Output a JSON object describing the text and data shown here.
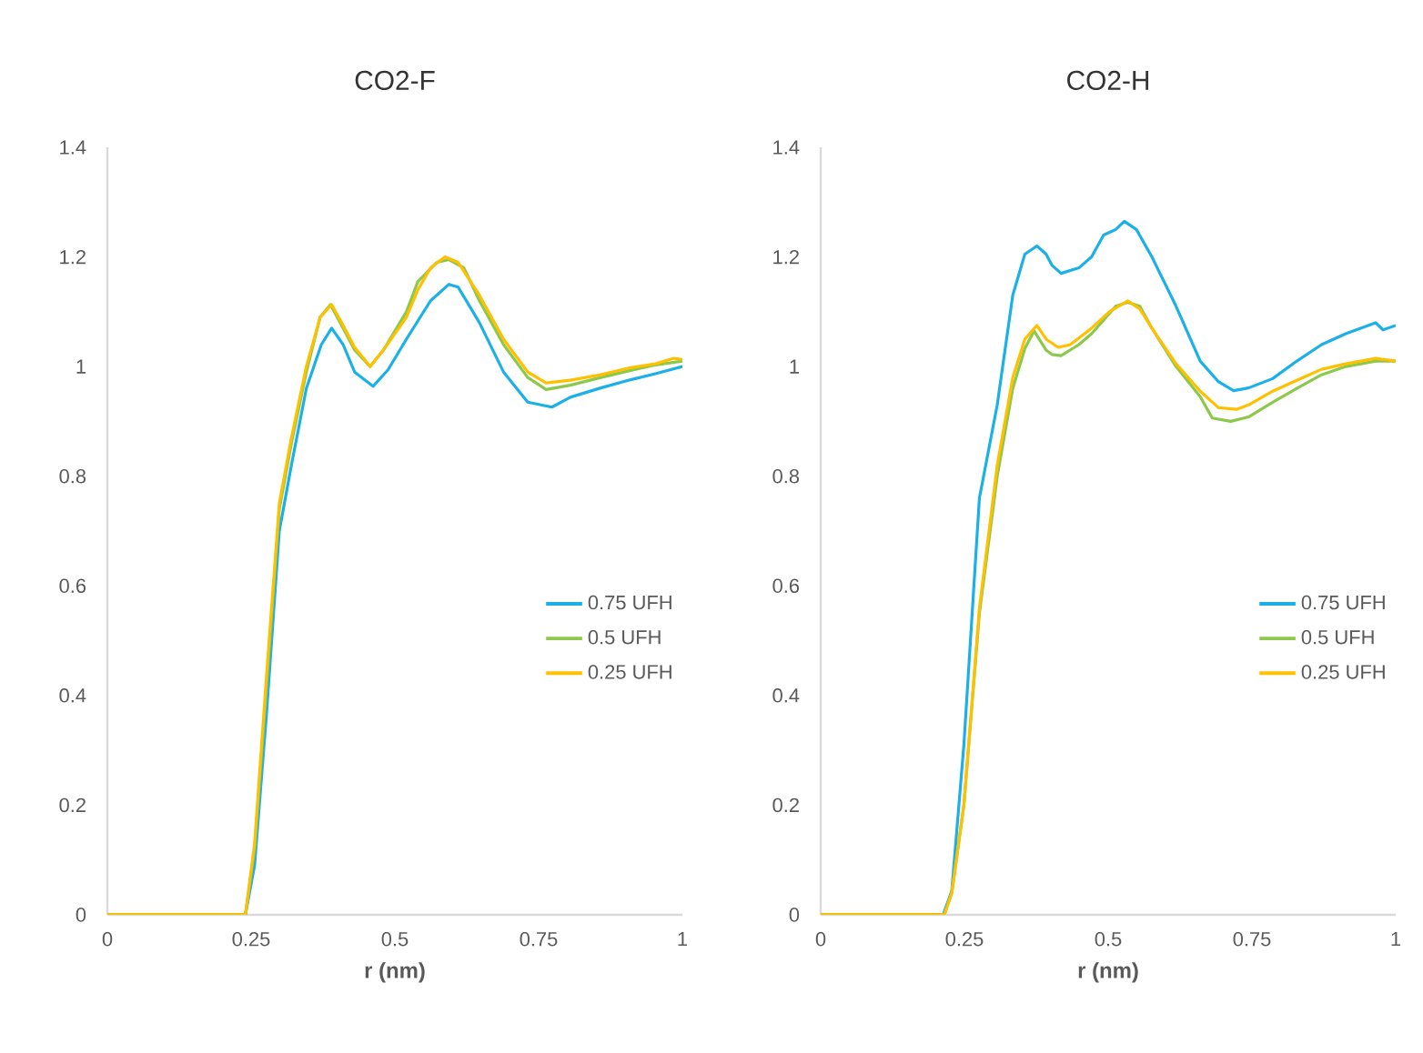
{
  "chart_data": [
    {
      "type": "line",
      "title": "CO2-F",
      "xlabel": "r (nm)",
      "xlim": [
        0,
        1
      ],
      "ylim": [
        0,
        1.4
      ],
      "xticks": [
        0,
        0.25,
        0.5,
        0.75,
        1
      ],
      "yticks": [
        0,
        0.2,
        0.4,
        0.6,
        0.8,
        1,
        1.2,
        1.4
      ],
      "legend": "right",
      "marker": "none",
      "series": [
        {
          "name": "0.75 UFH",
          "color": "#1cb0e8",
          "x": [
            0,
            0.24,
            0.256,
            0.277,
            0.299,
            0.32,
            0.346,
            0.372,
            0.39,
            0.41,
            0.43,
            0.462,
            0.488,
            0.52,
            0.562,
            0.594,
            0.61,
            0.647,
            0.689,
            0.731,
            0.773,
            0.805,
            0.858,
            0.91,
            0.953,
            1.0
          ],
          "values": [
            0,
            0,
            0.09,
            0.37,
            0.7,
            0.82,
            0.96,
            1.04,
            1.07,
            1.04,
            0.99,
            0.964,
            0.994,
            1.05,
            1.12,
            1.15,
            1.145,
            1.08,
            0.99,
            0.935,
            0.926,
            0.944,
            0.961,
            0.976,
            0.987,
            1.0
          ]
        },
        {
          "name": "0.5 UFH",
          "color": "#8cc84b",
          "x": [
            0,
            0.24,
            0.256,
            0.277,
            0.299,
            0.32,
            0.346,
            0.37,
            0.388,
            0.41,
            0.43,
            0.457,
            0.48,
            0.52,
            0.54,
            0.573,
            0.594,
            0.62,
            0.647,
            0.689,
            0.731,
            0.763,
            0.805,
            0.858,
            0.91,
            0.953,
            1.0
          ],
          "values": [
            0,
            0,
            0.12,
            0.42,
            0.74,
            0.86,
            0.99,
            1.09,
            1.113,
            1.07,
            1.03,
            1.0,
            1.03,
            1.1,
            1.155,
            1.19,
            1.195,
            1.18,
            1.12,
            1.04,
            0.98,
            0.958,
            0.966,
            0.98,
            0.993,
            1.003,
            1.01
          ]
        },
        {
          "name": "0.25 UFH",
          "color": "#ffc000",
          "x": [
            0,
            0.24,
            0.256,
            0.277,
            0.299,
            0.32,
            0.346,
            0.37,
            0.39,
            0.41,
            0.43,
            0.457,
            0.48,
            0.52,
            0.54,
            0.562,
            0.587,
            0.61,
            0.647,
            0.689,
            0.731,
            0.763,
            0.805,
            0.858,
            0.91,
            0.953,
            0.985,
            1.0
          ],
          "values": [
            0,
            0,
            0.13,
            0.44,
            0.75,
            0.87,
            1.0,
            1.09,
            1.113,
            1.075,
            1.035,
            1.0,
            1.03,
            1.09,
            1.14,
            1.18,
            1.2,
            1.19,
            1.13,
            1.05,
            0.99,
            0.97,
            0.975,
            0.985,
            0.998,
            1.005,
            1.015,
            1.013
          ]
        }
      ]
    },
    {
      "type": "line",
      "title": "CO2-H",
      "xlabel": "r (nm)",
      "xlim": [
        0,
        1
      ],
      "ylim": [
        0,
        1.4
      ],
      "xticks": [
        0,
        0.25,
        0.5,
        0.75,
        1
      ],
      "yticks": [
        0,
        0.2,
        0.4,
        0.6,
        0.8,
        1,
        1.2,
        1.4
      ],
      "legend": "right",
      "marker": "none",
      "series": [
        {
          "name": "0.75 UFH",
          "color": "#1cb0e8",
          "x": [
            0,
            0.213,
            0.228,
            0.249,
            0.276,
            0.307,
            0.334,
            0.355,
            0.376,
            0.392,
            0.402,
            0.418,
            0.449,
            0.471,
            0.492,
            0.513,
            0.528,
            0.549,
            0.576,
            0.618,
            0.66,
            0.692,
            0.718,
            0.744,
            0.786,
            0.828,
            0.871,
            0.913,
            0.965,
            0.978,
            1.0
          ],
          "values": [
            0,
            0,
            0.044,
            0.31,
            0.76,
            0.93,
            1.13,
            1.205,
            1.22,
            1.205,
            1.185,
            1.17,
            1.18,
            1.2,
            1.24,
            1.25,
            1.265,
            1.25,
            1.2,
            1.11,
            1.01,
            0.972,
            0.956,
            0.961,
            0.978,
            1.01,
            1.04,
            1.06,
            1.08,
            1.067,
            1.075
          ]
        },
        {
          "name": "0.5 UFH",
          "color": "#8cc84b",
          "x": [
            0,
            0.215,
            0.228,
            0.249,
            0.276,
            0.307,
            0.334,
            0.355,
            0.371,
            0.392,
            0.402,
            0.418,
            0.449,
            0.471,
            0.492,
            0.513,
            0.534,
            0.555,
            0.576,
            0.618,
            0.66,
            0.681,
            0.713,
            0.744,
            0.786,
            0.828,
            0.871,
            0.913,
            0.965,
            1.0
          ],
          "values": [
            0,
            0,
            0.04,
            0.2,
            0.55,
            0.8,
            0.96,
            1.033,
            1.065,
            1.03,
            1.022,
            1.02,
            1.04,
            1.06,
            1.085,
            1.11,
            1.117,
            1.11,
            1.07,
            1.0,
            0.945,
            0.906,
            0.9,
            0.908,
            0.935,
            0.96,
            0.985,
            1.0,
            1.01,
            1.01
          ]
        },
        {
          "name": "0.25 UFH",
          "color": "#ffc000",
          "x": [
            0,
            0.215,
            0.228,
            0.249,
            0.276,
            0.307,
            0.334,
            0.355,
            0.376,
            0.392,
            0.413,
            0.434,
            0.471,
            0.502,
            0.534,
            0.555,
            0.576,
            0.618,
            0.66,
            0.692,
            0.723,
            0.744,
            0.786,
            0.828,
            0.871,
            0.913,
            0.965,
            1.0
          ],
          "values": [
            0,
            0,
            0.04,
            0.2,
            0.56,
            0.82,
            0.98,
            1.05,
            1.075,
            1.05,
            1.035,
            1.04,
            1.07,
            1.1,
            1.12,
            1.105,
            1.07,
            1.005,
            0.955,
            0.925,
            0.922,
            0.93,
            0.955,
            0.975,
            0.995,
            1.005,
            1.015,
            1.01
          ]
        }
      ]
    }
  ]
}
